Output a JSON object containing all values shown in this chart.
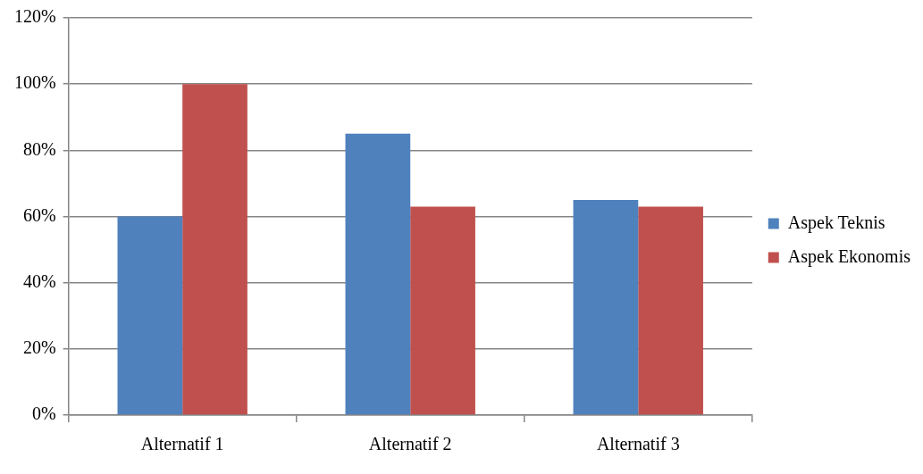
{
  "chart_data": {
    "type": "bar",
    "categories": [
      "Alternatif 1",
      "Alternatif 2",
      "Alternatif 3"
    ],
    "series": [
      {
        "name": "Aspek Teknis",
        "color": "#4f81bd",
        "values": [
          60,
          85,
          65
        ]
      },
      {
        "name": "Aspek Ekonomis",
        "color": "#c0504d",
        "values": [
          100,
          63,
          63
        ]
      }
    ],
    "ylim": [
      0,
      120
    ],
    "yticks": [
      {
        "value": 0,
        "label": "0%"
      },
      {
        "value": 20,
        "label": "20%"
      },
      {
        "value": 40,
        "label": "40%"
      },
      {
        "value": 60,
        "label": "60%"
      },
      {
        "value": 80,
        "label": "80%"
      },
      {
        "value": 100,
        "label": "100%"
      },
      {
        "value": 120,
        "label": "120%"
      }
    ],
    "grid": "y",
    "legend": "right"
  }
}
